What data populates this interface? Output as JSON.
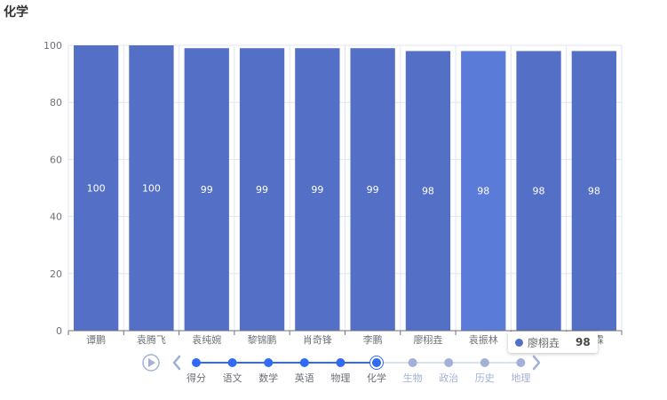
{
  "chart_title": "化学",
  "chart_data": {
    "type": "bar",
    "title": "化学",
    "categories": [
      "谭鹏",
      "袁腾飞",
      "袁纯婉",
      "黎锦鹏",
      "肖奇锋",
      "李鹏",
      "廖栩垚",
      "袁振林",
      "",
      "泽霖"
    ],
    "values": [
      100,
      100,
      99,
      99,
      99,
      99,
      98,
      98,
      98,
      98
    ],
    "ylim": [
      0,
      100
    ],
    "yticks": [
      0,
      20,
      40,
      60,
      80,
      100
    ],
    "grid": true,
    "highlighted_index": 7,
    "colors": {
      "bar": "#5470c6",
      "bar_highlight": "#5b7bd9",
      "axis": "#6e7079",
      "grid": "#e0e6f1"
    }
  },
  "timeline": {
    "items": [
      "得分",
      "语文",
      "数学",
      "英语",
      "物理",
      "化学",
      "生物",
      "政治",
      "历史",
      "地理"
    ],
    "current_index": 5,
    "colors": {
      "active": "#316bf3",
      "inactive": "#a4b1d7",
      "line": "#dae1f5",
      "control": "#a4b1d7"
    }
  },
  "tooltip": {
    "name": "廖栩垚",
    "value": "98"
  }
}
